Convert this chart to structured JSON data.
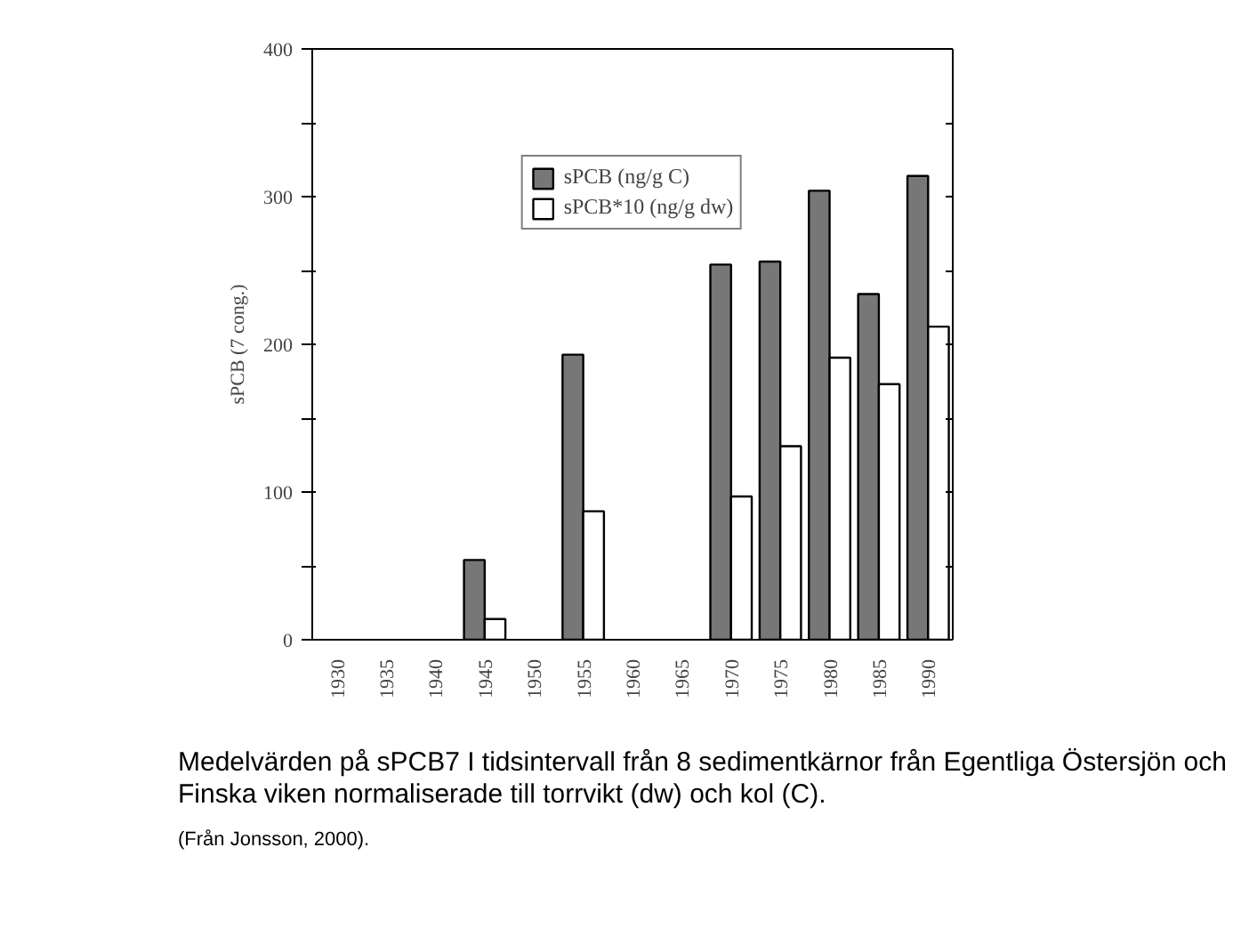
{
  "chart_data": {
    "type": "bar",
    "ylabel": "sPCB (7 cong.)",
    "categories": [
      "1930",
      "1935",
      "1940",
      "1945",
      "1950",
      "1955",
      "1960",
      "1965",
      "1970",
      "1975",
      "1980",
      "1985",
      "1990"
    ],
    "series": [
      {
        "name": "sPCB (ng/g C)",
        "color": "#777777",
        "values": [
          null,
          null,
          null,
          54,
          null,
          193,
          null,
          null,
          254,
          256,
          304,
          234,
          314
        ]
      },
      {
        "name": "sPCB*10 (ng/g dw)",
        "color": "#ffffff",
        "values": [
          null,
          null,
          null,
          14,
          null,
          87,
          null,
          null,
          97,
          131,
          191,
          173,
          212
        ]
      }
    ],
    "ylim": [
      0,
      400
    ],
    "yticks": [
      0,
      {
        "value": 50,
        "label": null
      },
      100,
      {
        "value": 150,
        "label": null
      },
      200,
      {
        "value": 250,
        "label": null
      },
      300,
      {
        "value": 350,
        "label": null
      },
      400
    ],
    "grid": false,
    "legend": "top",
    "annotations": [
      "Medelvärden på sPCB7 I tidsintervall från 8 sedimentkärnor från Egentliga Östersjön och Finska viken normaliserade till torrvikt (dw) och kol (C).",
      "(Från Jonsson, 2000)."
    ]
  }
}
